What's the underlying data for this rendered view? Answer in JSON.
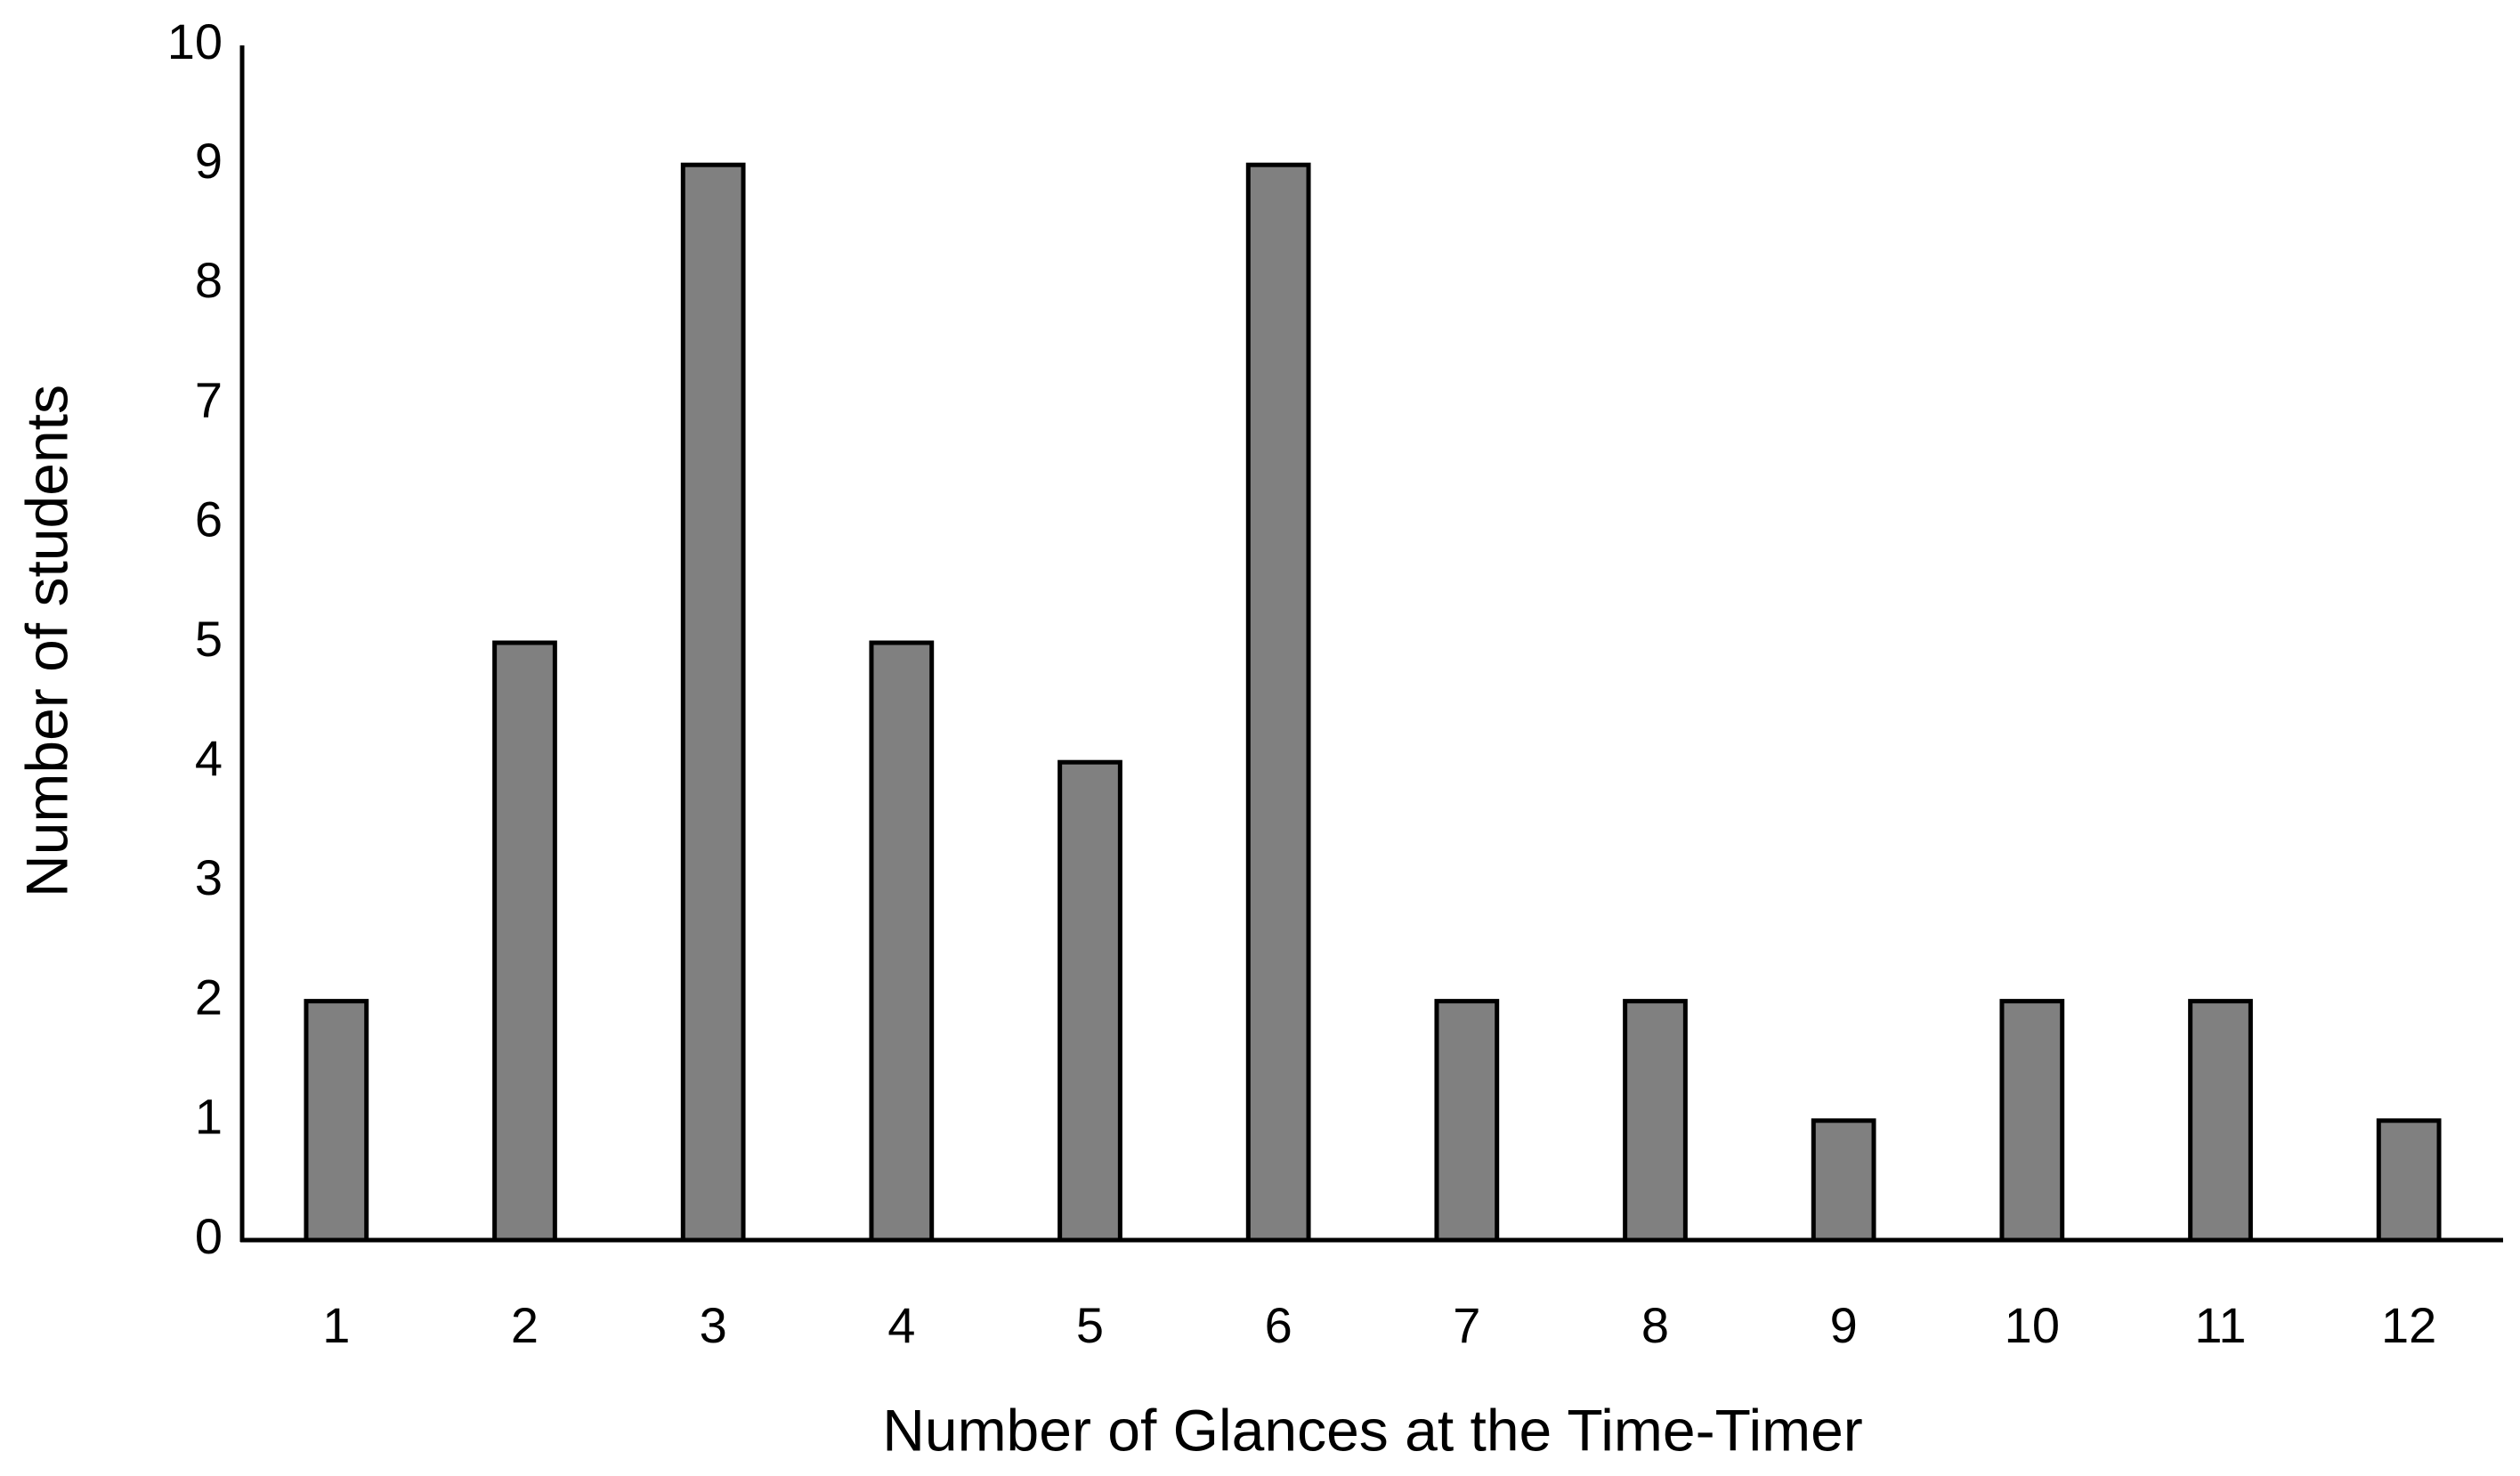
{
  "chart_data": {
    "type": "bar",
    "x_label": "Number of Glances at the Time-Timer",
    "y_label": "Number of students",
    "categories": [
      "1",
      "2",
      "3",
      "4",
      "5",
      "6",
      "7",
      "8",
      "9",
      "10",
      "11",
      "12"
    ],
    "values": [
      2,
      5,
      9,
      5,
      4,
      9,
      2,
      2,
      1,
      2,
      2,
      1
    ],
    "color": "#808080",
    "ylim": [
      0,
      10
    ],
    "yticks": [
      0,
      1,
      2,
      3,
      4,
      5,
      6,
      7,
      8,
      9,
      10
    ],
    "grid": false
  }
}
